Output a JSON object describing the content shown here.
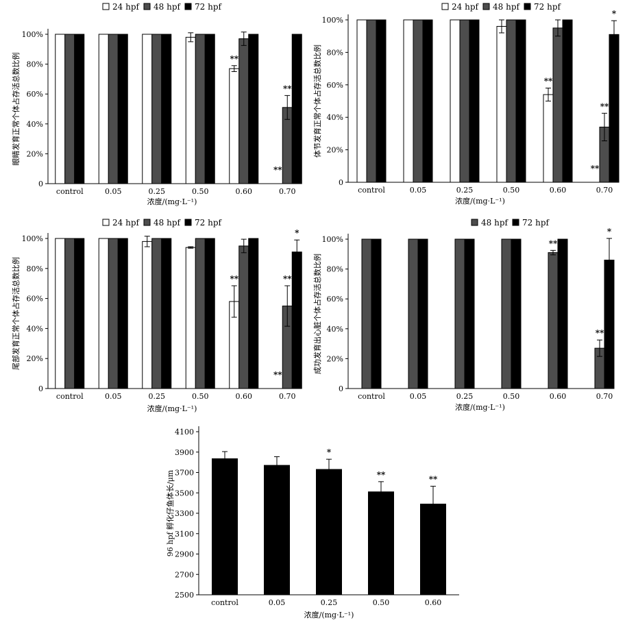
{
  "chart_data": [
    {
      "type": "bar",
      "title": "",
      "xlabel": "浓度/(mg·L⁻¹)",
      "ylabel": "眼睛发育正常个体占存活总数比例",
      "ylim": [
        0,
        100
      ],
      "yticks": [
        "0",
        "20%",
        "40%",
        "60%",
        "80%",
        "100%"
      ],
      "ytick_values": [
        0,
        20,
        40,
        60,
        80,
        100
      ],
      "categories": [
        "control",
        "0.05",
        "0.25",
        "0.50",
        "0.60",
        "0.70"
      ],
      "series": [
        {
          "name": "24 hpf",
          "fill": "#ffffff",
          "values": [
            100,
            100,
            100,
            98,
            77,
            0
          ],
          "errors": [
            0,
            0,
            0,
            3,
            2,
            0
          ],
          "sig": [
            "",
            "",
            "",
            "",
            "**",
            "**"
          ]
        },
        {
          "name": "48 hpf",
          "fill": "#4d4d4d",
          "values": [
            100,
            100,
            100,
            100,
            97,
            51
          ],
          "errors": [
            0,
            0,
            0,
            0,
            4.5,
            8
          ],
          "sig": [
            "",
            "",
            "",
            "",
            "",
            "**"
          ]
        },
        {
          "name": "72 hpf",
          "fill": "#000000",
          "values": [
            100,
            100,
            100,
            100,
            100,
            100
          ],
          "errors": [
            0,
            0,
            0,
            0,
            0,
            0
          ],
          "sig": [
            "",
            "",
            "",
            "",
            "",
            ""
          ]
        }
      ],
      "legend_position": "top",
      "grid": false
    },
    {
      "type": "bar",
      "title": "",
      "xlabel": "浓度/(mg·L⁻¹)",
      "ylabel": "体节发育正常个体占存活总数比例",
      "ylim": [
        0,
        100
      ],
      "yticks": [
        "0",
        "20%",
        "40%",
        "60%",
        "80%",
        "100%"
      ],
      "ytick_values": [
        0,
        20,
        40,
        60,
        80,
        100
      ],
      "categories": [
        "control",
        "0.05",
        "0.25",
        "0.50",
        "0.60",
        "0.70"
      ],
      "series": [
        {
          "name": "24 hpf",
          "fill": "#ffffff",
          "values": [
            100,
            100,
            100,
            96,
            54,
            0
          ],
          "errors": [
            0,
            0,
            0,
            4,
            4,
            0
          ],
          "sig": [
            "",
            "",
            "",
            "",
            "**",
            "**"
          ]
        },
        {
          "name": "48 hpf",
          "fill": "#4d4d4d",
          "values": [
            100,
            100,
            100,
            100,
            95,
            34
          ],
          "errors": [
            0,
            0,
            0,
            0,
            5,
            8.5
          ],
          "sig": [
            "",
            "",
            "",
            "",
            "",
            "**"
          ]
        },
        {
          "name": "72 hpf",
          "fill": "#000000",
          "values": [
            100,
            100,
            100,
            100,
            100,
            91
          ],
          "errors": [
            0,
            0,
            0,
            0,
            0,
            8.5
          ],
          "sig": [
            "",
            "",
            "",
            "",
            "",
            "*"
          ]
        }
      ],
      "legend_position": "top",
      "grid": false
    },
    {
      "type": "bar",
      "title": "",
      "xlabel": "浓度/(mg·L⁻¹)",
      "ylabel": "尾部发育正常个体占存活总数比例",
      "ylim": [
        0,
        100
      ],
      "yticks": [
        "0",
        "20%",
        "40%",
        "60%",
        "80%",
        "100%"
      ],
      "ytick_values": [
        0,
        20,
        40,
        60,
        80,
        100
      ],
      "categories": [
        "control",
        "0.05",
        "0.25",
        "0.50",
        "0.60",
        "0.70"
      ],
      "series": [
        {
          "name": "24 hpf",
          "fill": "#ffffff",
          "values": [
            100,
            100,
            98,
            94,
            58,
            0
          ],
          "errors": [
            0,
            0,
            3.5,
            0.5,
            10.5,
            0
          ],
          "sig": [
            "",
            "",
            "",
            "",
            "**",
            "**"
          ]
        },
        {
          "name": "48 hpf",
          "fill": "#4d4d4d",
          "values": [
            100,
            100,
            100,
            100,
            95,
            55
          ],
          "errors": [
            0,
            0,
            0,
            0,
            4.5,
            13.5
          ],
          "sig": [
            "",
            "",
            "",
            "",
            "",
            "**"
          ]
        },
        {
          "name": "72 hpf",
          "fill": "#000000",
          "values": [
            100,
            100,
            100,
            100,
            100,
            91
          ],
          "errors": [
            0,
            0,
            0,
            0,
            0,
            8
          ],
          "sig": [
            "",
            "",
            "",
            "",
            "",
            "*"
          ]
        }
      ],
      "legend_position": "top",
      "grid": false
    },
    {
      "type": "bar",
      "title": "",
      "xlabel": "浓度/(mg·L⁻¹)",
      "ylabel": "成功发育出心脏个体占存活总数比例",
      "ylim": [
        0,
        100
      ],
      "yticks": [
        "0",
        "20%",
        "40%",
        "60%",
        "80%",
        "100%"
      ],
      "ytick_values": [
        0,
        20,
        40,
        60,
        80,
        100
      ],
      "categories": [
        "control",
        "0.05",
        "0.25",
        "0.50",
        "0.60",
        "0.70"
      ],
      "series": [
        {
          "name": "48 hpf",
          "fill": "#4d4d4d",
          "values": [
            100,
            100,
            100,
            100,
            91,
            27
          ],
          "errors": [
            0,
            0,
            0,
            0,
            1.5,
            5.5
          ],
          "sig": [
            "",
            "",
            "",
            "",
            "**",
            "**"
          ]
        },
        {
          "name": "72 hpf",
          "fill": "#000000",
          "values": [
            100,
            100,
            100,
            100,
            100,
            86
          ],
          "errors": [
            0,
            0,
            0,
            0,
            0,
            14.5
          ],
          "sig": [
            "",
            "",
            "",
            "",
            "",
            "*"
          ]
        }
      ],
      "legend_position": "top",
      "grid": false
    },
    {
      "type": "bar",
      "title": "",
      "xlabel": "浓度/(mg·L⁻¹)",
      "ylabel": "96 hpf 孵化仔鱼体长/μm",
      "ylim": [
        2500,
        4100
      ],
      "yticks": [
        "2500",
        "2700",
        "2900",
        "3100",
        "3300",
        "3500",
        "3700",
        "3900",
        "4100"
      ],
      "ytick_values": [
        2500,
        2700,
        2900,
        3100,
        3300,
        3500,
        3700,
        3900,
        4100
      ],
      "categories": [
        "control",
        "0.05",
        "0.25",
        "0.50",
        "0.60"
      ],
      "series": [
        {
          "name": "",
          "fill": "#000000",
          "values": [
            3835,
            3770,
            3730,
            3510,
            3390
          ],
          "errors": [
            70,
            85,
            100,
            100,
            175
          ],
          "sig": [
            "",
            "",
            "*",
            "**",
            "**"
          ]
        }
      ],
      "legend_position": "none",
      "grid": false
    }
  ]
}
